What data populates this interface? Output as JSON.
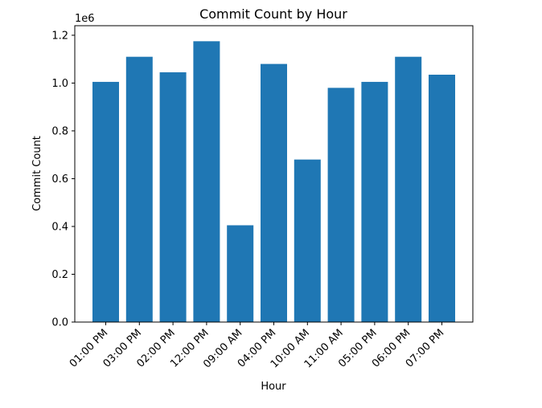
{
  "chart_data": {
    "type": "bar",
    "title": "Commit Count by Hour",
    "xlabel": "Hour",
    "ylabel": "Commit Count",
    "y_multiplier_label": "1e6",
    "categories": [
      "01:00 PM",
      "03:00 PM",
      "02:00 PM",
      "12:00 PM",
      "09:00 AM",
      "04:00 PM",
      "10:00 AM",
      "11:00 AM",
      "05:00 PM",
      "06:00 PM",
      "07:00 PM"
    ],
    "values": [
      1005000,
      1110000,
      1045000,
      1175000,
      405000,
      1080000,
      680000,
      980000,
      1005000,
      1110000,
      1035000
    ],
    "ylim": [
      0,
      1240000
    ],
    "yticks": [
      0,
      200000,
      400000,
      600000,
      800000,
      1000000,
      1200000
    ],
    "ytick_labels": [
      "0.0",
      "0.2",
      "0.4",
      "0.6",
      "0.8",
      "1.0",
      "1.2"
    ],
    "bar_color": "#1f77b4",
    "grid": false,
    "legend": "none"
  }
}
